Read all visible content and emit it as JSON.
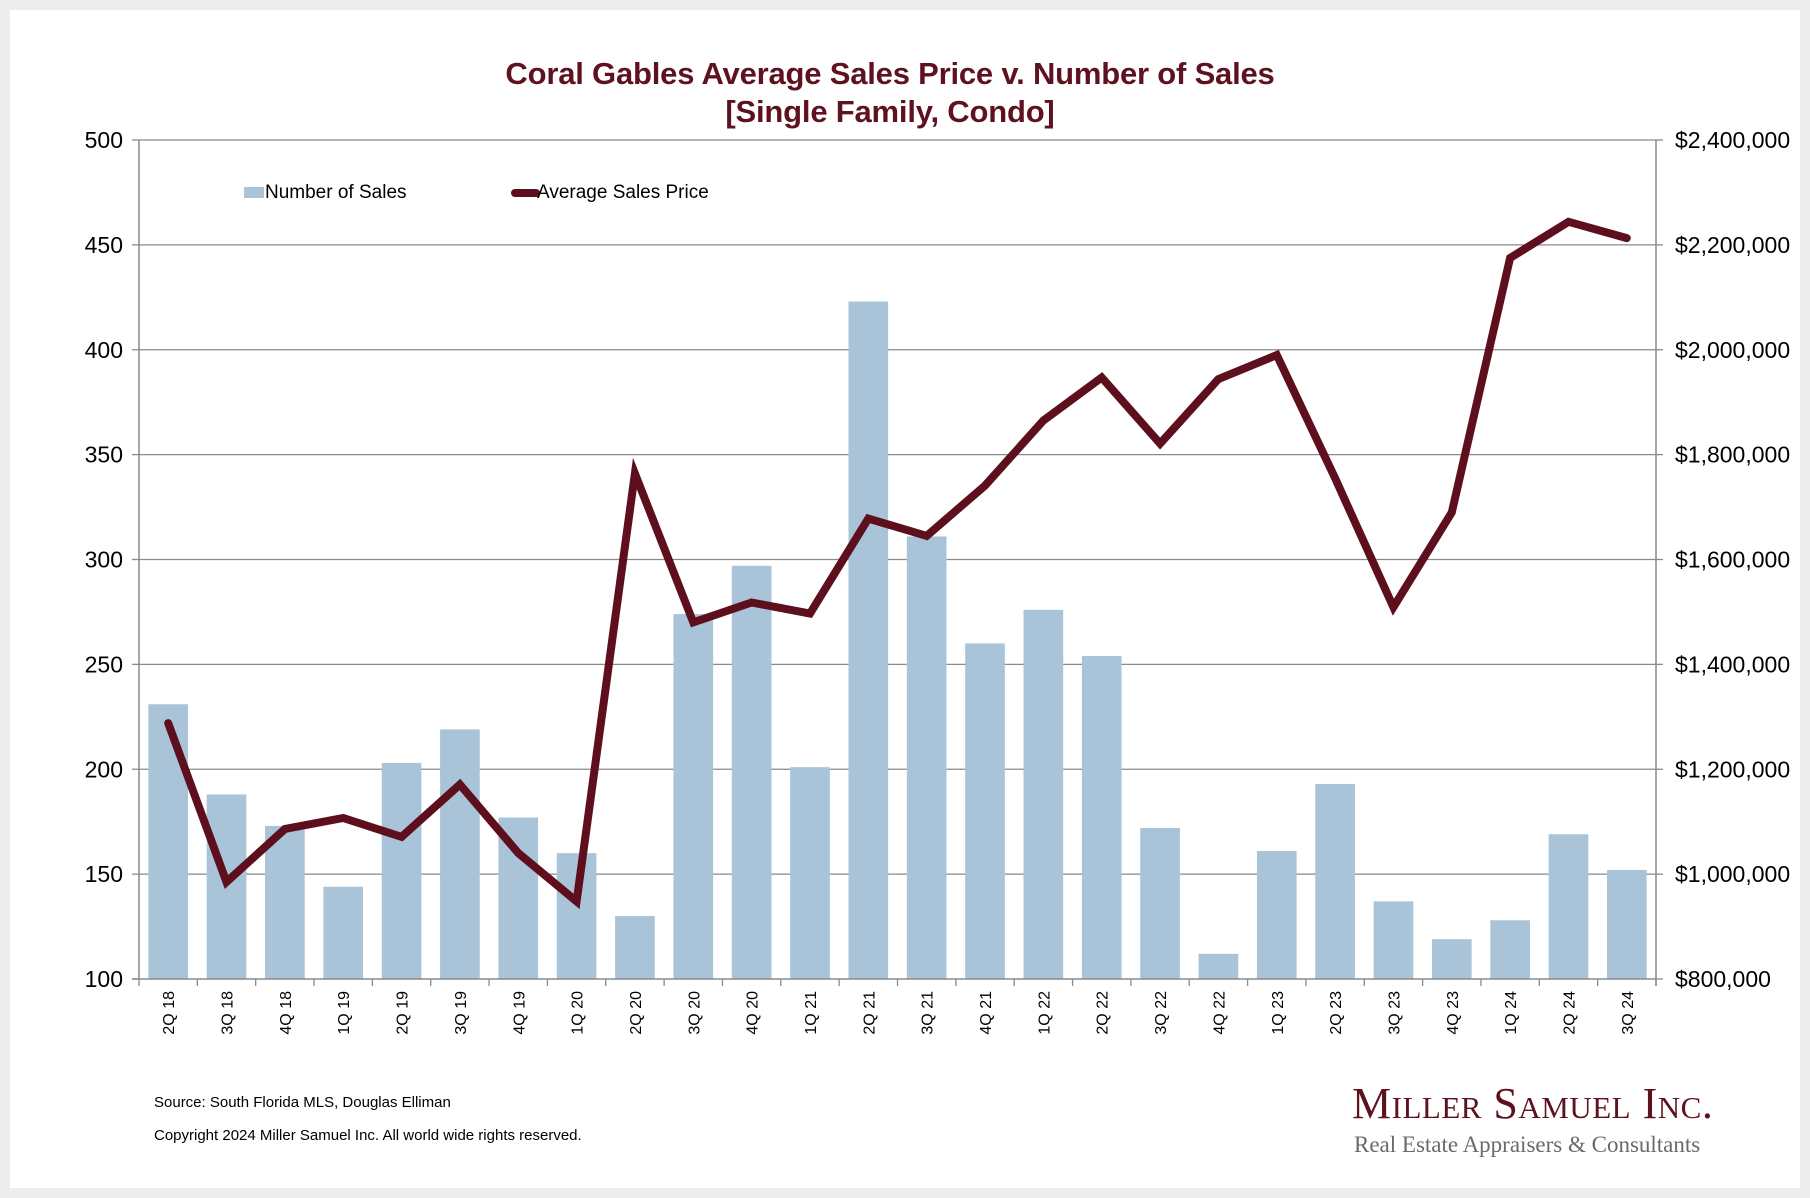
{
  "chart_data": {
    "type": "bar+line",
    "title": "Coral Gables Average Sales Price v. Number of Sales",
    "subtitle": "[Single Family, Condo]",
    "categories": [
      "2Q 18",
      "3Q 18",
      "4Q 18",
      "1Q 19",
      "2Q 19",
      "3Q 19",
      "4Q 19",
      "1Q 20",
      "2Q 20",
      "3Q 20",
      "4Q 20",
      "1Q 21",
      "2Q 21",
      "3Q 21",
      "4Q 21",
      "1Q 22",
      "2Q 22",
      "3Q 22",
      "4Q 22",
      "1Q 23",
      "2Q 23",
      "3Q 23",
      "4Q 23",
      "1Q 24",
      "2Q 24",
      "3Q 24"
    ],
    "series": [
      {
        "name": "Number of Sales",
        "type": "bar",
        "axis": "left",
        "color": "#a9c4d9",
        "values": [
          231,
          188,
          173,
          144,
          203,
          219,
          177,
          160,
          130,
          274,
          297,
          201,
          423,
          311,
          260,
          276,
          254,
          172,
          112,
          161,
          193,
          137,
          119,
          128,
          169,
          152
        ]
      },
      {
        "name": "Average Sales Price",
        "type": "line",
        "axis": "right",
        "color": "#5e0f1e",
        "values": [
          1288000,
          985000,
          1086000,
          1107000,
          1071000,
          1171000,
          1040000,
          948000,
          1764000,
          1480000,
          1518000,
          1497000,
          1678000,
          1645000,
          1741000,
          1865000,
          1947000,
          1821000,
          1944000,
          1990000,
          1755000,
          1509000,
          1690000,
          2175000,
          2244000,
          2213000
        ]
      }
    ],
    "y_left": {
      "label": "",
      "range": [
        100,
        500
      ],
      "ticks": [
        "500",
        "450",
        "400",
        "350",
        "300",
        "250",
        "200",
        "150",
        "100"
      ],
      "tick_values": [
        500,
        450,
        400,
        350,
        300,
        250,
        200,
        150,
        100
      ]
    },
    "y_right": {
      "label": "",
      "range": [
        800000,
        2400000
      ],
      "ticks": [
        "$2,400,000",
        "$2,200,000",
        "$2,000,000",
        "$1,800,000",
        "$1,600,000",
        "$1,400,000",
        "$1,200,000",
        "$1,000,000",
        "$800,000"
      ],
      "tick_values": [
        2400000,
        2200000,
        2000000,
        1800000,
        1600000,
        1400000,
        1200000,
        1000000,
        800000
      ]
    },
    "xlabel": "",
    "grid": true,
    "legend": {
      "placement": "top-left",
      "entries": [
        "Number of Sales",
        "Average Sales Price"
      ]
    }
  },
  "footer": {
    "source": "Source: South Florida MLS, Douglas Elliman",
    "copyright": "Copyright 2024 Miller Samuel Inc.  All world wide rights reserved."
  },
  "logo": {
    "name": "Miller Samuel Inc.",
    "tagline": "Real Estate Appraisers & Consultants"
  },
  "colors": {
    "title": "#5e1220",
    "bar": "#a9c4d9",
    "line": "#5e0f1e",
    "frame": "#ededed"
  }
}
